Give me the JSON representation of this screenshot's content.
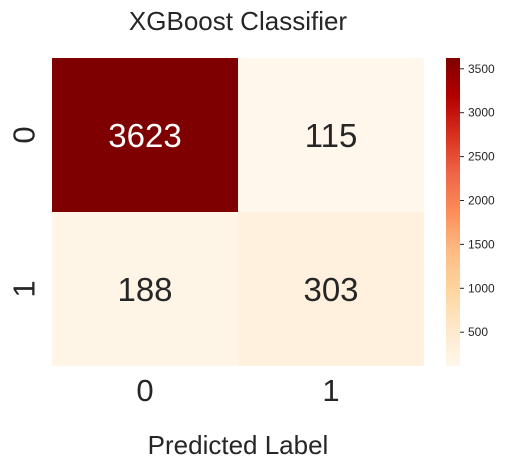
{
  "chart_data": {
    "type": "heatmap",
    "title": "XGBoost Classifier",
    "xlabel": "Predicted Label",
    "ylabel": "",
    "x_categories": [
      "0",
      "1"
    ],
    "y_categories": [
      "0",
      "1"
    ],
    "values": [
      [
        3623,
        115
      ],
      [
        188,
        303
      ]
    ],
    "colormap": "OrRd",
    "colorbar": {
      "range": [
        115,
        3623
      ],
      "ticks": [
        500,
        1000,
        1500,
        2000,
        2500,
        3000,
        3500
      ],
      "tick_labels": [
        "500",
        "1000",
        "1500",
        "2000",
        "2500",
        "3000",
        "3500"
      ]
    },
    "grid": false,
    "legend": "colorbar-right"
  }
}
